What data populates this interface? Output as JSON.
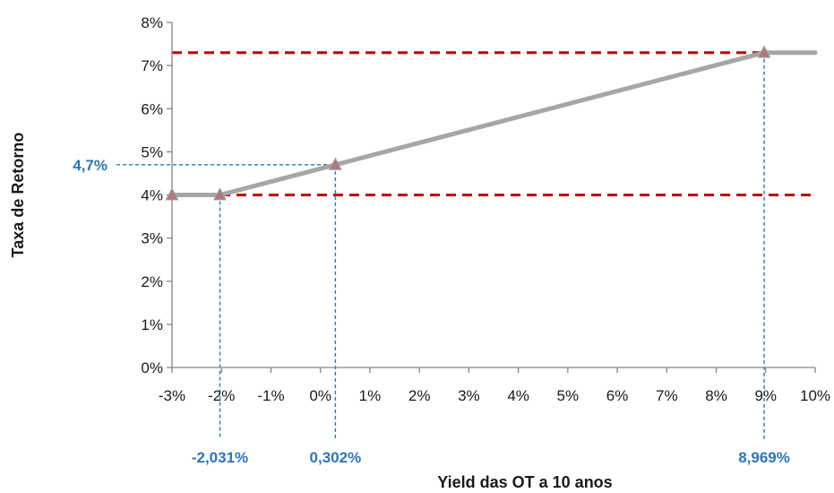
{
  "chart_data": {
    "type": "line",
    "title": "",
    "xlabel": "Yield das OT a 10 anos",
    "ylabel": "Taxa de Retorno",
    "xlim": [
      -3,
      10
    ],
    "ylim": [
      0,
      8
    ],
    "x_tick_labels": [
      "-3%",
      "-2%",
      "-1%",
      "0%",
      "1%",
      "2%",
      "3%",
      "4%",
      "5%",
      "6%",
      "7%",
      "8%",
      "9%",
      "10%"
    ],
    "y_tick_labels": [
      "0%",
      "1%",
      "2%",
      "3%",
      "4%",
      "5%",
      "6%",
      "7%",
      "8%"
    ],
    "x_ticks": [
      -3,
      -2,
      -1,
      0,
      1,
      2,
      3,
      4,
      5,
      6,
      7,
      8,
      9,
      10
    ],
    "y_ticks": [
      0,
      1,
      2,
      3,
      4,
      5,
      6,
      7,
      8
    ],
    "series": [
      {
        "x": [
          -3,
          -2.031,
          0.302,
          8.969,
          10
        ],
        "y": [
          4.0,
          4.0,
          4.7,
          7.3,
          7.3
        ],
        "markers": [
          true,
          true,
          true,
          true,
          false
        ],
        "color": "#a6a6a6",
        "marker_color": "#b2787f"
      }
    ],
    "reference_lines": [
      {
        "y": 7.3,
        "color": "#c00000",
        "style": "dashed"
      },
      {
        "y": 4.0,
        "color": "#c00000",
        "style": "dashed"
      }
    ],
    "annotations": {
      "color": "#2e75b6",
      "x_points": [
        {
          "x": -2.031,
          "y": 4.0,
          "label": "-2,031%"
        },
        {
          "x": 0.302,
          "y": 4.7,
          "label": "0,302%"
        },
        {
          "x": 8.969,
          "y": 7.3,
          "label": "8,969%"
        }
      ],
      "y_points": [
        {
          "x": 0.302,
          "y": 4.7,
          "label": "4,7%"
        }
      ]
    },
    "grid": false
  }
}
